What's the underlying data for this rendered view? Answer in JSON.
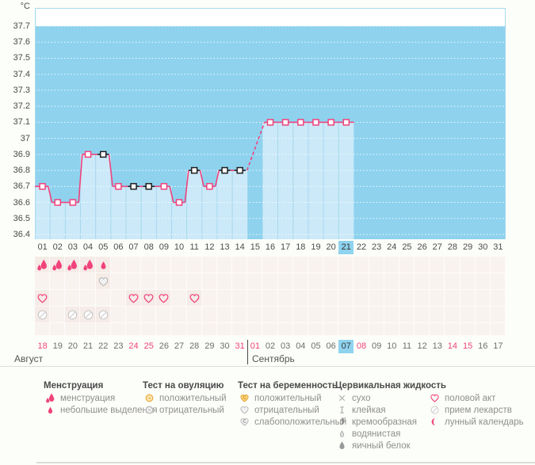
{
  "colors": {
    "plot_bg": "#8ED2EE",
    "plot_fill": "#CBE9F8",
    "plot_sep": "#A7D8EE",
    "plot_frame": "#A6DAEF",
    "line": "#F0437C",
    "marker_black": "#1F1F1F",
    "today_highlight": "#8FD3EF",
    "weekend_text": "#F0437C",
    "icon_pink": "#F0437C",
    "cell_bg": "#F9F3F0",
    "cell_bg_active": "#F5EBE7"
  },
  "chart_data": {
    "type": "line",
    "title": "",
    "ylabel": "°C",
    "xlabel": "",
    "ylim": [
      36.4,
      37.7
    ],
    "grid": "horizontal-dotted",
    "yticks": [
      "37.7",
      "37.6",
      "37.5",
      "37.4",
      "37.3",
      "37.2",
      "37.1",
      "37",
      "36.9",
      "36.8",
      "36.7",
      "36.6",
      "36.5",
      "36.4"
    ],
    "x_days": [
      "01",
      "02",
      "03",
      "04",
      "05",
      "06",
      "07",
      "08",
      "09",
      "10",
      "11",
      "12",
      "13",
      "14",
      "15",
      "16",
      "17",
      "18",
      "19",
      "20",
      "21",
      "22",
      "23",
      "24",
      "25",
      "26",
      "27",
      "28",
      "29",
      "30",
      "31"
    ],
    "highlight_day": "21",
    "series": [
      {
        "name": "basal-temperature",
        "points": [
          {
            "day": 1,
            "temp": 36.7,
            "marker": "pink"
          },
          {
            "day": 2,
            "temp": 36.6,
            "marker": "pink"
          },
          {
            "day": 3,
            "temp": 36.6,
            "marker": "pink"
          },
          {
            "day": 4,
            "temp": 36.9,
            "marker": "pink"
          },
          {
            "day": 5,
            "temp": 36.9,
            "marker": "black"
          },
          {
            "day": 6,
            "temp": 36.7,
            "marker": "pink"
          },
          {
            "day": 7,
            "temp": 36.7,
            "marker": "black"
          },
          {
            "day": 8,
            "temp": 36.7,
            "marker": "black"
          },
          {
            "day": 9,
            "temp": 36.7,
            "marker": "pink"
          },
          {
            "day": 10,
            "temp": 36.6,
            "marker": "pink"
          },
          {
            "day": 11,
            "temp": 36.8,
            "marker": "black"
          },
          {
            "day": 12,
            "temp": 36.7,
            "marker": "pink"
          },
          {
            "day": 13,
            "temp": 36.8,
            "marker": "black"
          },
          {
            "day": 14,
            "temp": 36.8,
            "marker": "black"
          },
          {
            "day": 16,
            "temp": 37.1,
            "marker": "pink"
          },
          {
            "day": 17,
            "temp": 37.1,
            "marker": "pink"
          },
          {
            "day": 18,
            "temp": 37.1,
            "marker": "pink"
          },
          {
            "day": 19,
            "temp": 37.1,
            "marker": "pink"
          },
          {
            "day": 20,
            "temp": 37.1,
            "marker": "pink"
          },
          {
            "day": 21,
            "temp": 37.1,
            "marker": "pink"
          }
        ]
      }
    ],
    "missing_days": [
      15
    ],
    "gap_connectors": [
      [
        14,
        16
      ]
    ]
  },
  "symbol_grid": {
    "rows": [
      {
        "name": "menstruation-row",
        "cells": {
          "1": "drops-heavy",
          "2": "drops-heavy",
          "3": "drops-heavy",
          "4": "drops-heavy",
          "5": "drop-light"
        }
      },
      {
        "name": "pregnancy-test-row",
        "cells": {
          "5": "preg-negative"
        }
      },
      {
        "name": "intercourse-row",
        "cells": {
          "1": "heart-outline",
          "7": "heart-outline",
          "8": "heart-outline",
          "9": "heart-outline",
          "11": "heart-outline"
        }
      },
      {
        "name": "medication-row",
        "cells": {
          "1": "pill",
          "3": "pill",
          "4": "pill",
          "5": "pill"
        }
      },
      {
        "name": "extra-row",
        "cells": {}
      }
    ]
  },
  "calendar": {
    "months": [
      {
        "label": "Август"
      },
      {
        "label": "Сентябрь"
      }
    ],
    "dates": [
      {
        "label": "18",
        "weekend": true,
        "today": false
      },
      {
        "label": "19",
        "weekend": false,
        "today": false
      },
      {
        "label": "20",
        "weekend": false,
        "today": false
      },
      {
        "label": "21",
        "weekend": false,
        "today": false
      },
      {
        "label": "22",
        "weekend": false,
        "today": false
      },
      {
        "label": "23",
        "weekend": false,
        "today": false
      },
      {
        "label": "24",
        "weekend": true,
        "today": false
      },
      {
        "label": "25",
        "weekend": true,
        "today": false
      },
      {
        "label": "26",
        "weekend": false,
        "today": false
      },
      {
        "label": "27",
        "weekend": false,
        "today": false
      },
      {
        "label": "28",
        "weekend": false,
        "today": false
      },
      {
        "label": "29",
        "weekend": false,
        "today": false
      },
      {
        "label": "30",
        "weekend": false,
        "today": false
      },
      {
        "label": "31",
        "weekend": true,
        "today": false
      },
      {
        "label": "01",
        "weekend": true,
        "today": false
      },
      {
        "label": "02",
        "weekend": false,
        "today": false
      },
      {
        "label": "03",
        "weekend": false,
        "today": false
      },
      {
        "label": "04",
        "weekend": false,
        "today": false
      },
      {
        "label": "05",
        "weekend": false,
        "today": false
      },
      {
        "label": "06",
        "weekend": false,
        "today": false
      },
      {
        "label": "07",
        "weekend": false,
        "today": true
      },
      {
        "label": "08",
        "weekend": true,
        "today": false
      },
      {
        "label": "09",
        "weekend": false,
        "today": false
      },
      {
        "label": "10",
        "weekend": false,
        "today": false
      },
      {
        "label": "11",
        "weekend": false,
        "today": false
      },
      {
        "label": "12",
        "weekend": false,
        "today": false
      },
      {
        "label": "13",
        "weekend": false,
        "today": false
      },
      {
        "label": "14",
        "weekend": true,
        "today": false
      },
      {
        "label": "15",
        "weekend": true,
        "today": false
      },
      {
        "label": "16",
        "weekend": false,
        "today": false
      },
      {
        "label": "17",
        "weekend": false,
        "today": false
      }
    ]
  },
  "legend": {
    "groups": [
      {
        "title": "Менструация",
        "items": [
          {
            "icon": "drops-heavy",
            "label": "менструация"
          },
          {
            "icon": "drop-light",
            "label": "небольшие выделения"
          }
        ]
      },
      {
        "title": "Тест на овуляцию",
        "items": [
          {
            "icon": "ovu-positive",
            "label": "положительный"
          },
          {
            "icon": "ovu-negative",
            "label": "отрицательный"
          }
        ]
      },
      {
        "title": "Тест на беременность",
        "items": [
          {
            "icon": "preg-positive",
            "label": "положительный"
          },
          {
            "icon": "preg-negative",
            "label": "отрицательный"
          },
          {
            "icon": "preg-weak",
            "label": "слабоположительный"
          }
        ]
      },
      {
        "title": "Цервикальная жидкость",
        "items": [
          {
            "icon": "dry",
            "label": "сухо"
          },
          {
            "icon": "sticky",
            "label": "клейкая"
          },
          {
            "icon": "creamy",
            "label": "кремообразная"
          },
          {
            "icon": "watery",
            "label": "водянистая"
          },
          {
            "icon": "eggwhite",
            "label": "яичный белок"
          }
        ]
      },
      {
        "title": "",
        "items": [
          {
            "icon": "heart-outline",
            "label": "половой акт"
          },
          {
            "icon": "pill",
            "label": "прием лекарств"
          },
          {
            "icon": "moon",
            "label": "лунный календарь"
          }
        ]
      }
    ]
  }
}
